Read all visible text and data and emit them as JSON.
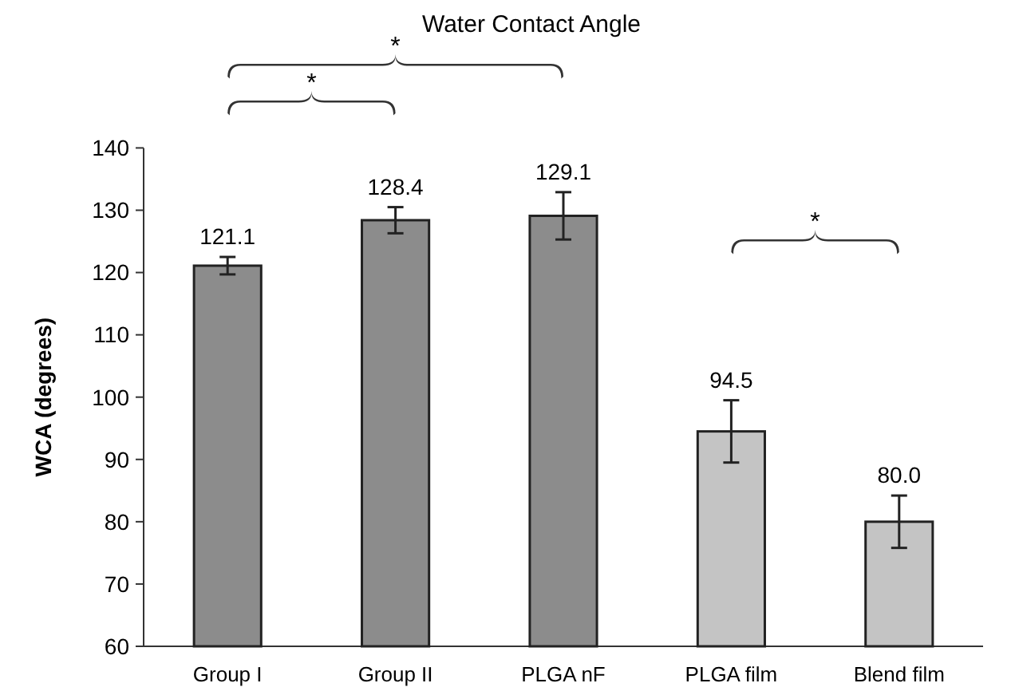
{
  "chart_data": {
    "type": "bar",
    "title": "Water Contact Angle",
    "ylabel": "WCA (degrees)",
    "categories": [
      "Group I",
      "Group II",
      "PLGA nF",
      "PLGA film",
      "Blend film"
    ],
    "values": [
      121.1,
      128.4,
      129.1,
      94.5,
      80.0
    ],
    "value_labels": [
      "121.1",
      "128.4",
      "129.1",
      "94.5",
      "80.0"
    ],
    "errors": [
      1.4,
      2.1,
      3.8,
      5.0,
      4.2
    ],
    "colors": [
      "#8c8c8c",
      "#8c8c8c",
      "#8c8c8c",
      "#c4c4c4",
      "#c4c4c4"
    ],
    "ylim": [
      60,
      140
    ],
    "yticks": [
      60,
      70,
      80,
      90,
      100,
      110,
      120,
      130,
      140
    ],
    "annotations": [
      "*",
      "*",
      "*"
    ]
  }
}
